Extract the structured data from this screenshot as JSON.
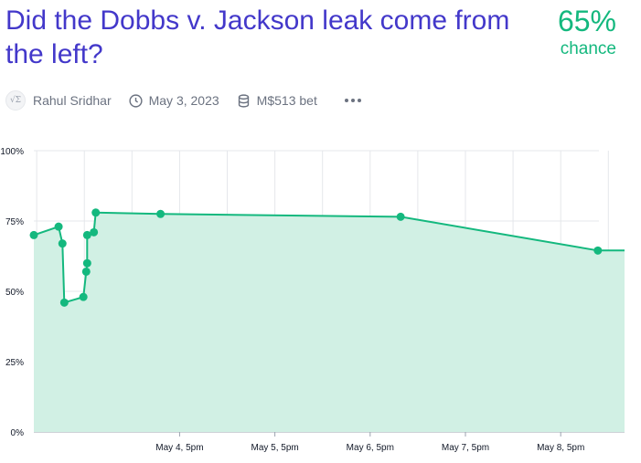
{
  "question": {
    "title": "Did the Dobbs v. Jackson leak come from the left?",
    "probability": "65%",
    "probability_label": "chance"
  },
  "meta": {
    "author": "Rahul Sridhar",
    "date": "May 3, 2023",
    "volume": "M$513 bet",
    "icons": [
      "avatar",
      "clock-icon",
      "coins-icon",
      "more-icon"
    ]
  },
  "colors": {
    "title": "#4338ca",
    "accent": "#14b87e",
    "fill": "#d1f0e4",
    "meta": "#6b7280"
  },
  "chart_data": {
    "type": "area",
    "x_unit": "days",
    "xlim": [
      "May 3, 2023 ~4:05am",
      "May 9, 2023 ~5am"
    ],
    "ylim": [
      0,
      100
    ],
    "y_ticks": [
      "0%",
      "25%",
      "50%",
      "75%",
      "100%"
    ],
    "x_ticks": [
      "May 4, 5pm",
      "May 5, 5pm",
      "May 6, 5pm",
      "May 7, 5pm",
      "May 8, 5pm"
    ],
    "points": [
      {
        "t": 0.0,
        "y": 70
      },
      {
        "t": 0.26,
        "y": 73
      },
      {
        "t": 0.3,
        "y": 67
      },
      {
        "t": 0.32,
        "y": 46
      },
      {
        "t": 0.52,
        "y": 48
      },
      {
        "t": 0.55,
        "y": 57
      },
      {
        "t": 0.56,
        "y": 60
      },
      {
        "t": 0.56,
        "y": 70
      },
      {
        "t": 0.63,
        "y": 71
      },
      {
        "t": 0.65,
        "y": 78
      },
      {
        "t": 1.33,
        "y": 77.5
      },
      {
        "t": 3.85,
        "y": 76.5
      },
      {
        "t": 5.92,
        "y": 64.5
      }
    ],
    "end_t": 6.2,
    "grid": true
  }
}
